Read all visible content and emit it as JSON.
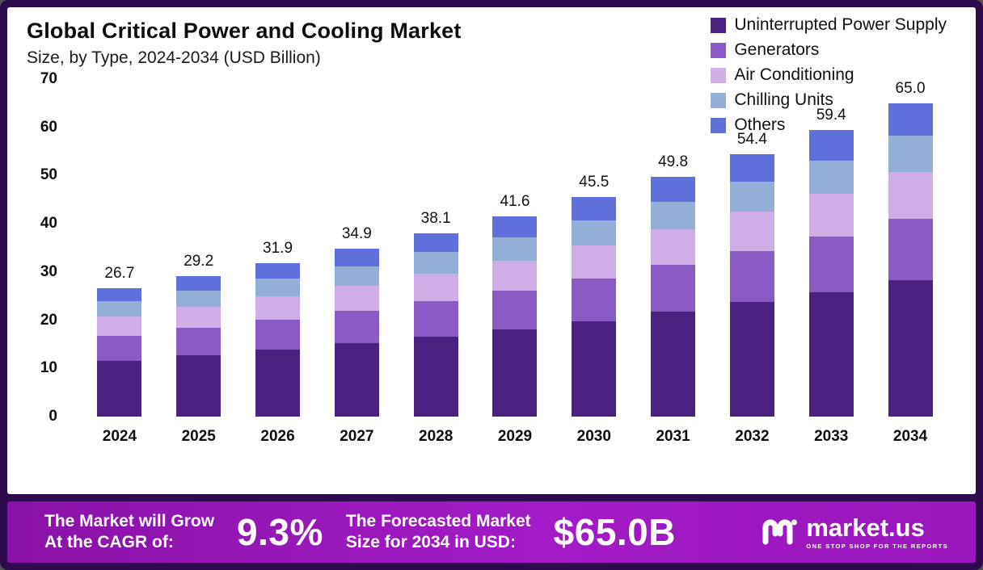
{
  "header": {
    "title": "Global Critical Power and Cooling Market",
    "subtitle": "Size, by Type, 2024-2034 (USD Billion)"
  },
  "chart_data": {
    "type": "bar",
    "stacked": true,
    "title": "Global Critical Power and Cooling Market Size, by Type, 2024-2034 (USD Billion)",
    "xlabel": "",
    "ylabel": "USD Billion",
    "ylim": [
      0,
      70
    ],
    "yticks": [
      0,
      10,
      20,
      30,
      40,
      50,
      60,
      70
    ],
    "grid": false,
    "legend_position": "top-right",
    "categories": [
      "2024",
      "2025",
      "2026",
      "2027",
      "2028",
      "2029",
      "2030",
      "2031",
      "2032",
      "2033",
      "2034"
    ],
    "totals": [
      26.7,
      29.2,
      31.9,
      34.9,
      38.1,
      41.6,
      45.5,
      49.8,
      54.4,
      59.4,
      65.0
    ],
    "series": [
      {
        "name": "Uninterrupted Power Supply",
        "color": "#4b2182",
        "values": [
          11.6,
          12.7,
          13.9,
          15.2,
          16.6,
          18.1,
          19.8,
          21.7,
          23.7,
          25.8,
          28.3
        ]
      },
      {
        "name": "Generators",
        "color": "#8a5bc4",
        "values": [
          5.2,
          5.7,
          6.2,
          6.8,
          7.4,
          8.1,
          8.9,
          9.7,
          10.6,
          11.6,
          12.7
        ]
      },
      {
        "name": "Air Conditioning",
        "color": "#cfaee8",
        "values": [
          4.0,
          4.4,
          4.8,
          5.2,
          5.7,
          6.2,
          6.8,
          7.5,
          8.2,
          8.9,
          9.8
        ]
      },
      {
        "name": "Chilling Units",
        "color": "#92afd7",
        "values": [
          3.1,
          3.4,
          3.7,
          4.0,
          4.4,
          4.8,
          5.2,
          5.7,
          6.3,
          6.8,
          7.4
        ]
      },
      {
        "name": "Others",
        "color": "#5f6fdb",
        "values": [
          2.8,
          3.0,
          3.3,
          3.7,
          4.0,
          4.4,
          4.8,
          5.2,
          5.6,
          6.3,
          6.8
        ]
      }
    ]
  },
  "banner": {
    "growth_label_line1": "The Market will Grow",
    "growth_label_line2": "At the CAGR of:",
    "cagr_value": "9.3%",
    "forecast_label_line1": "The Forecasted Market",
    "forecast_label_line2": "Size for 2034 in USD:",
    "forecast_value": "$65.0B",
    "brand": "market.us",
    "brand_tagline": "ONE STOP SHOP FOR THE REPORTS"
  },
  "colors": {
    "frame": "#2e0a4f",
    "card_background": "#ffffff",
    "banner_gradient_start": "#8a12a8",
    "banner_gradient_end": "#9b16bd",
    "text": "#111111"
  }
}
